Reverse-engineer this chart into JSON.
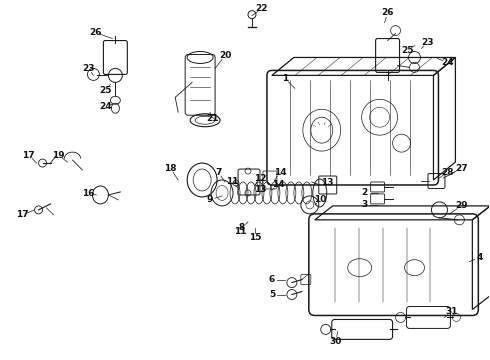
{
  "bg_color": "#ffffff",
  "line_color": "#1a1a1a",
  "label_color": "#111111",
  "lw": 0.9,
  "fs": 6.5
}
